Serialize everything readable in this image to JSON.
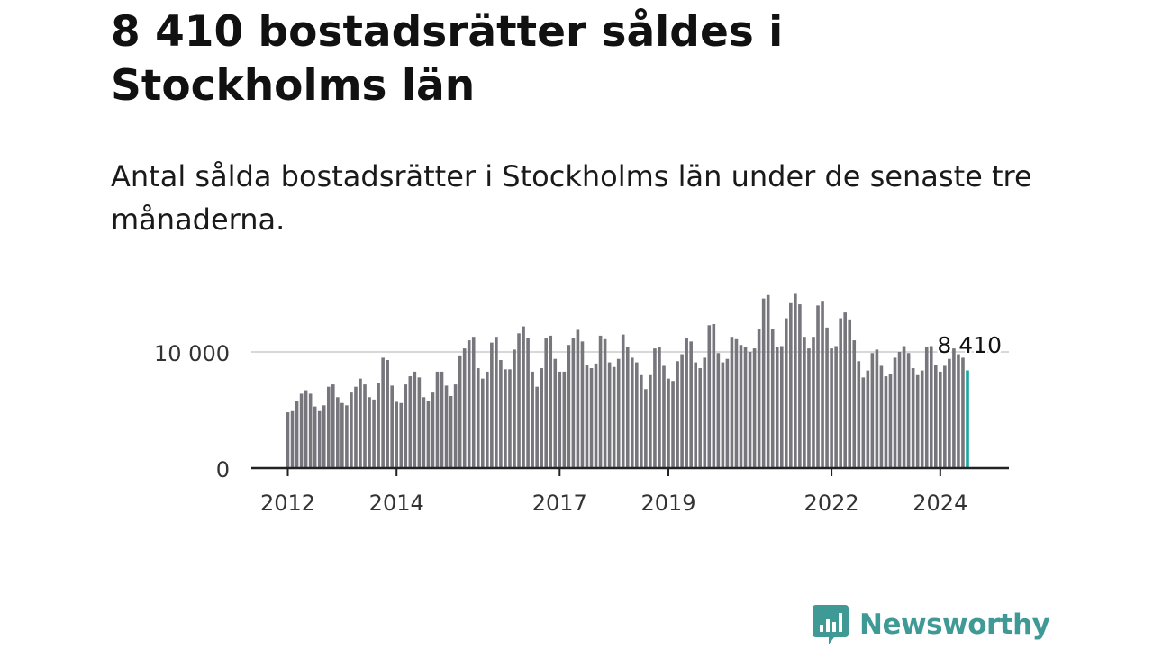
{
  "header": {
    "title": "8 410 bostadsrätter såldes i Stockholms län",
    "subtitle": "Antal sålda bostadsrätter i Stockholms län under de senaste tre månaderna."
  },
  "logo": {
    "text": "Newsworthy",
    "icon": "newsworthy-bar-chart-icon"
  },
  "colors": {
    "bar": "#77767c",
    "highlight": "#1aa6a0",
    "axis": "#222222",
    "grid": "#cccccc",
    "brand": "#3f9a96"
  },
  "chart_data": {
    "type": "bar",
    "title": "",
    "xlabel": "",
    "ylabel": "",
    "ylim": [
      0,
      15500
    ],
    "yticks": [
      0,
      10000
    ],
    "ytick_labels": [
      "0",
      "10 000"
    ],
    "x_start": "2012-01",
    "xticks": [
      {
        "index": 0,
        "label": "2012"
      },
      {
        "index": 24,
        "label": "2014"
      },
      {
        "index": 60,
        "label": "2017"
      },
      {
        "index": 84,
        "label": "2019"
      },
      {
        "index": 120,
        "label": "2022"
      },
      {
        "index": 144,
        "label": "2024"
      }
    ],
    "annotation": {
      "index": 150,
      "label": "8 410"
    },
    "values": [
      4800,
      4900,
      5800,
      6400,
      6700,
      6400,
      5300,
      4900,
      5400,
      7000,
      7200,
      6100,
      5600,
      5400,
      6500,
      7000,
      7700,
      7200,
      6100,
      5900,
      7300,
      9500,
      9300,
      7100,
      5700,
      5600,
      7200,
      7900,
      8300,
      7800,
      6100,
      5800,
      6500,
      8300,
      8300,
      7100,
      6200,
      7200,
      9700,
      10300,
      11000,
      11300,
      8600,
      7700,
      8300,
      10800,
      11300,
      9300,
      8500,
      8500,
      10200,
      11600,
      12200,
      11200,
      8300,
      7000,
      8600,
      11200,
      11400,
      9400,
      8300,
      8300,
      10600,
      11200,
      11900,
      10900,
      8900,
      8600,
      9000,
      11400,
      11100,
      9100,
      8700,
      9400,
      11500,
      10400,
      9500,
      9100,
      8000,
      6800,
      8000,
      10300,
      10400,
      8800,
      7700,
      7500,
      9200,
      9800,
      11200,
      10900,
      9100,
      8600,
      9500,
      12300,
      12400,
      9900,
      9100,
      9400,
      11300,
      11100,
      10600,
      10400,
      10000,
      10300,
      12000,
      14600,
      14900,
      12000,
      10400,
      10500,
      12900,
      14200,
      15000,
      14100,
      11300,
      10300,
      11300,
      14000,
      14400,
      12100,
      10300,
      10500,
      12900,
      13400,
      12800,
      11000,
      9200,
      7800,
      8400,
      9900,
      10200,
      8800,
      7900,
      8100,
      9500,
      10000,
      10500,
      9900,
      8600,
      8000,
      8400,
      10400,
      10500,
      8900,
      8300,
      8800,
      9400,
      10300,
      9800,
      9500,
      8410
    ]
  }
}
